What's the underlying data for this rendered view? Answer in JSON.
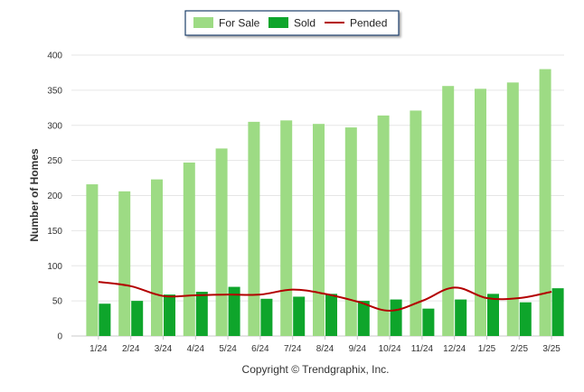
{
  "chart_data": {
    "type": "bar",
    "ylabel": "Number of Homes",
    "ylim": [
      0,
      400
    ],
    "yticks": [
      "0",
      "50",
      "100",
      "150",
      "200",
      "250",
      "300",
      "350",
      "400"
    ],
    "categories": [
      "1/24",
      "2/24",
      "3/24",
      "4/24",
      "5/24",
      "6/24",
      "7/24",
      "8/24",
      "9/24",
      "10/24",
      "11/24",
      "12/24",
      "1/25",
      "2/25",
      "3/25"
    ],
    "series": [
      {
        "name": "For Sale",
        "type": "bar",
        "color": "#9ddb84",
        "values": [
          216,
          206,
          223,
          247,
          267,
          305,
          307,
          302,
          297,
          314,
          321,
          356,
          352,
          361,
          380
        ]
      },
      {
        "name": "Sold",
        "type": "bar",
        "color": "#0ea52b",
        "values": [
          46,
          50,
          59,
          63,
          70,
          53,
          56,
          60,
          50,
          52,
          39,
          52,
          60,
          48,
          68
        ]
      },
      {
        "name": "Pended",
        "type": "line",
        "color": "#b30000",
        "values": [
          77,
          71,
          57,
          58,
          59,
          59,
          66,
          60,
          49,
          36,
          50,
          69,
          54,
          54,
          63
        ]
      }
    ],
    "grid": true,
    "legend": "top-center"
  },
  "legend": {
    "for_sale": "For Sale",
    "sold": "Sold",
    "pended": "Pended"
  },
  "footer": "Copyright © Trendgraphix, Inc."
}
